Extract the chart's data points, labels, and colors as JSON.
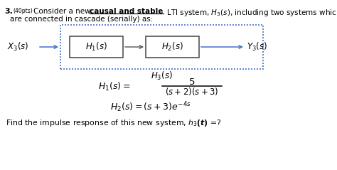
{
  "bg_color": "#ffffff",
  "text_color": "#000000",
  "blue_color": "#4472c4",
  "box_edge_color": "#444444",
  "line1_num": "3.",
  "line1_pts": "(40pts)",
  "line1_main": "Consider a new ",
  "line1_bold": "causal and stable",
  "line1_rest": " LTI system, $H_3(s)$, including two systems which",
  "line2": "are connected in cascade (serially) as:",
  "x3": "$X_3(s)$",
  "h1": "$H_1(s)$",
  "h2": "$H_2(s)$",
  "y3": "$Y_3(s)$",
  "h3": "$H_3(s)$",
  "eq1_lhs": "$H_1(s) =$",
  "eq1_num": "$5$",
  "eq1_den": "$(s+2)(s+3)$",
  "eq2": "$H_2(s) = (s+3)e^{-4s}$",
  "question": "Find the impulse response of this new system, $\\boldsymbol{h_3(t)}$ =?"
}
